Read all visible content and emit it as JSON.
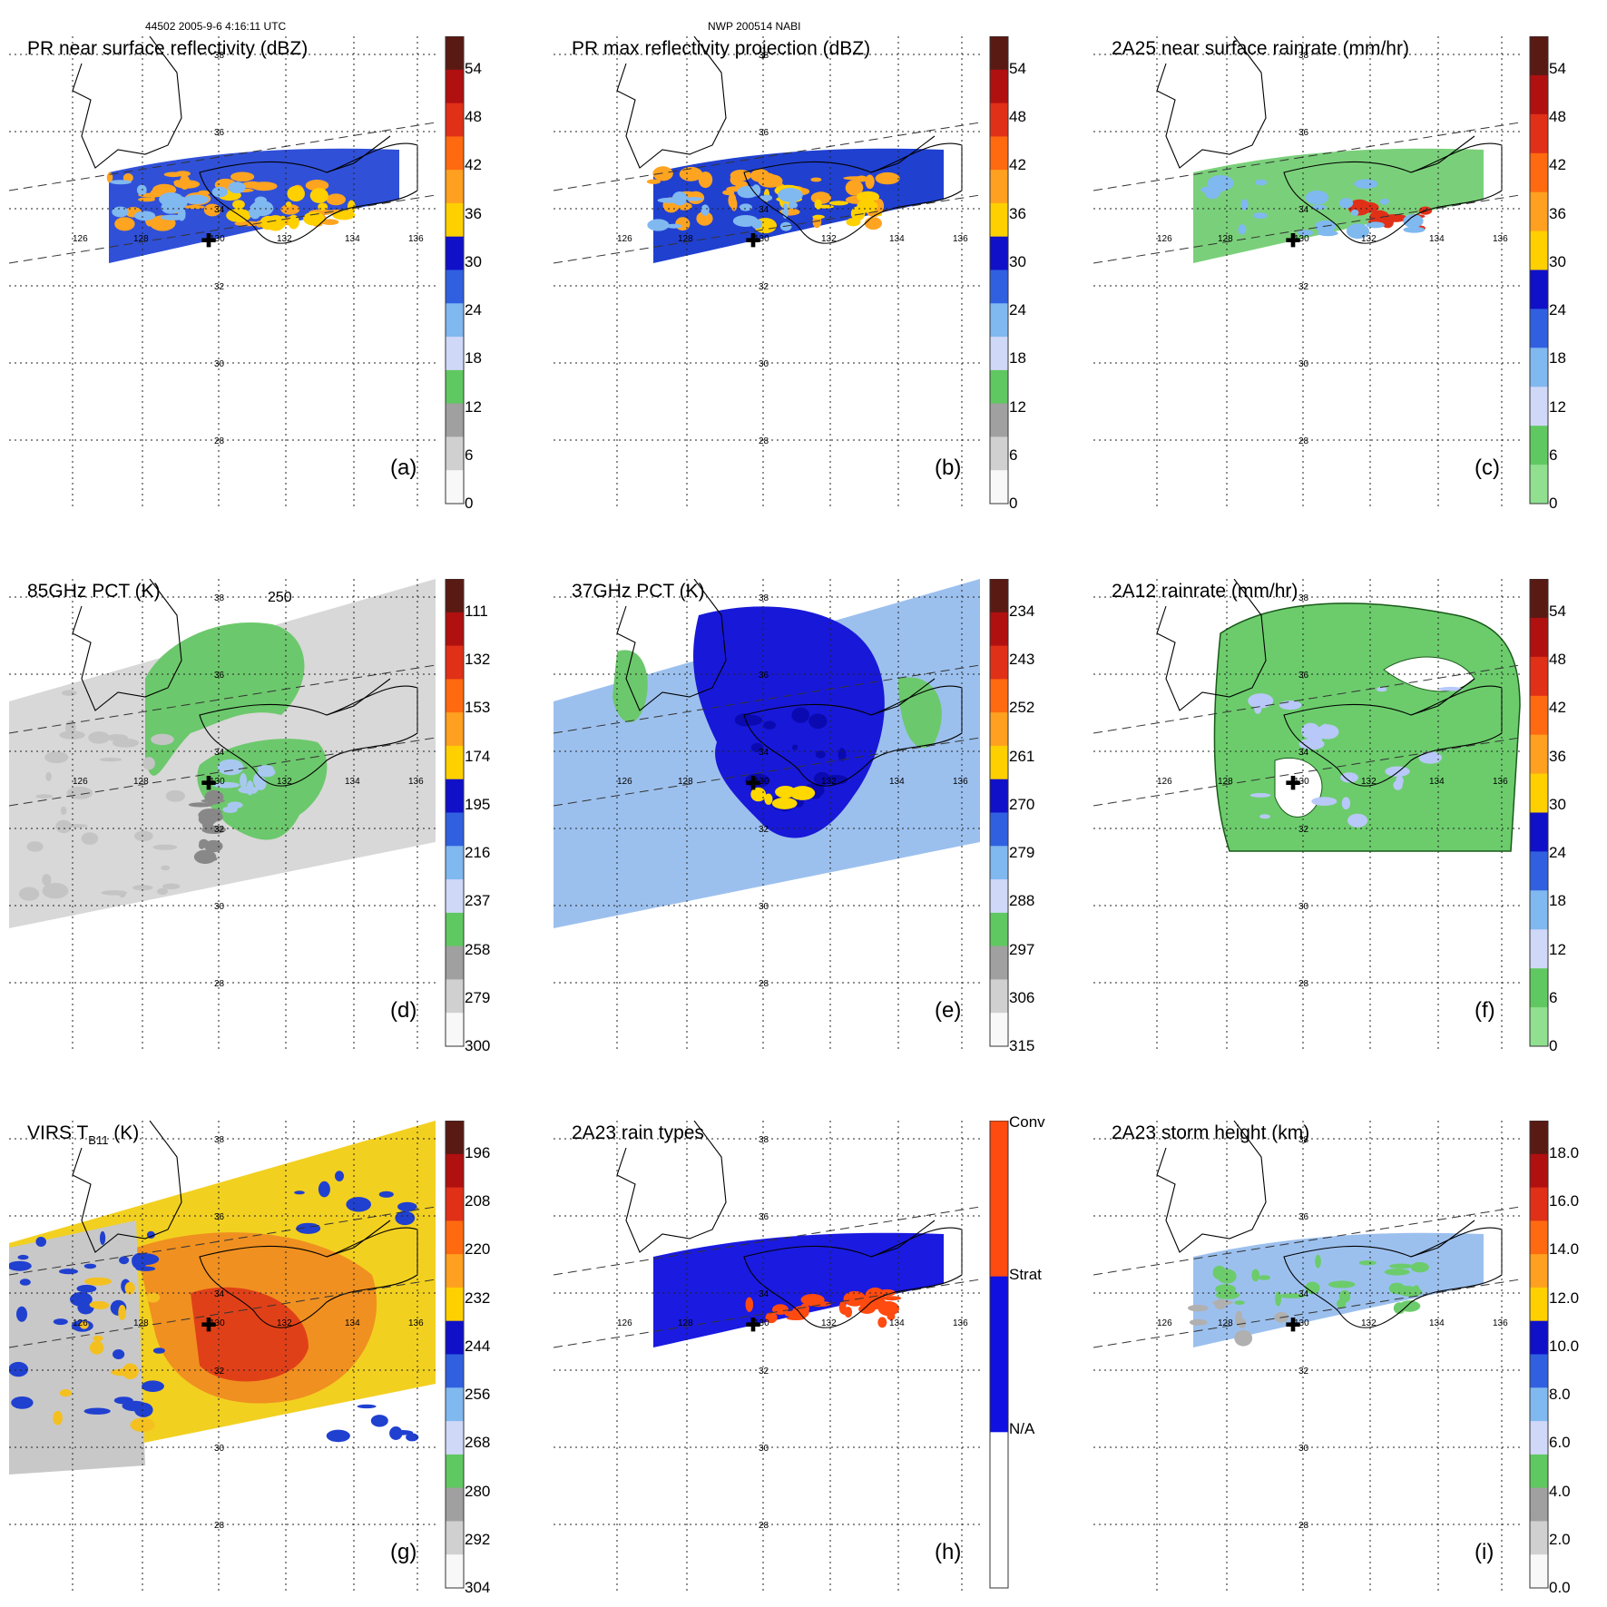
{
  "header": {
    "orbit_time": "44502 2005-9-6 4:16:11 UTC",
    "storm": "NWP 200514 NABI"
  },
  "grid": {
    "lon_labels": [
      "126",
      "128",
      "130",
      "132",
      "134",
      "136"
    ],
    "lat_labels": [
      "38",
      "36",
      "34",
      "32",
      "30",
      "28"
    ]
  },
  "panels": [
    {
      "id": "a",
      "title": "PR near surface reflectivity (dBZ)",
      "letter": "(a)",
      "ticks": [
        "54",
        "48",
        "42",
        "36",
        "30",
        "24",
        "18",
        "12",
        "6",
        "0"
      ],
      "colors": [
        "#5a1a14",
        "#b01010",
        "#e03018",
        "#ff6a10",
        "#ffa020",
        "#ffd000",
        "#1010c8",
        "#3060e0",
        "#80b8f0",
        "#d0d8f8",
        "#60c860",
        "#a0a0a0",
        "#d0d0d0",
        "#f8f8f8"
      ]
    },
    {
      "id": "b",
      "title": "PR max reflectivity projection (dBZ)",
      "letter": "(b)",
      "ticks": [
        "54",
        "48",
        "42",
        "36",
        "30",
        "24",
        "18",
        "12",
        "6",
        "0"
      ],
      "colors": [
        "#5a1a14",
        "#b01010",
        "#e03018",
        "#ff6a10",
        "#ffa020",
        "#ffd000",
        "#1010c8",
        "#3060e0",
        "#80b8f0",
        "#d0d8f8",
        "#60c860",
        "#a0a0a0",
        "#d0d0d0",
        "#f8f8f8"
      ]
    },
    {
      "id": "c",
      "title": "2A25 near surface rainrate (mm/hr)",
      "letter": "(c)",
      "ticks": [
        "54",
        "48",
        "42",
        "36",
        "30",
        "24",
        "18",
        "12",
        "6",
        "0"
      ],
      "colors": [
        "#5a1a14",
        "#b01010",
        "#e03018",
        "#ff6a10",
        "#ffa020",
        "#ffd000",
        "#1010c8",
        "#3060e0",
        "#80b8f0",
        "#d0d8f8",
        "#60c860",
        "#90e090"
      ]
    },
    {
      "id": "d",
      "title": "85GHz PCT (K)",
      "letter": "(d)",
      "contour": "250",
      "ticks": [
        "111",
        "132",
        "153",
        "174",
        "195",
        "216",
        "237",
        "258",
        "279",
        "300"
      ],
      "colors": [
        "#5a1a14",
        "#b01010",
        "#e03018",
        "#ff6a10",
        "#ffa020",
        "#ffd000",
        "#1010c8",
        "#3060e0",
        "#80b8f0",
        "#d0d8f8",
        "#60c860",
        "#a0a0a0",
        "#d0d0d0",
        "#f8f8f8"
      ]
    },
    {
      "id": "e",
      "title": "37GHz PCT (K)",
      "letter": "(e)",
      "ticks": [
        "234",
        "243",
        "252",
        "261",
        "270",
        "279",
        "288",
        "297",
        "306",
        "315"
      ],
      "colors": [
        "#5a1a14",
        "#b01010",
        "#e03018",
        "#ff6a10",
        "#ffa020",
        "#ffd000",
        "#1010c8",
        "#3060e0",
        "#80b8f0",
        "#d0d8f8",
        "#60c860",
        "#a0a0a0",
        "#d0d0d0",
        "#f8f8f8"
      ]
    },
    {
      "id": "f",
      "title": "2A12 rainrate (mm/hr)",
      "letter": "(f)",
      "ticks": [
        "54",
        "48",
        "42",
        "36",
        "30",
        "24",
        "18",
        "12",
        "6",
        "0"
      ],
      "colors": [
        "#5a1a14",
        "#b01010",
        "#e03018",
        "#ff6a10",
        "#ffa020",
        "#ffd000",
        "#1010c8",
        "#3060e0",
        "#80b8f0",
        "#d0d8f8",
        "#60c860",
        "#90e090"
      ]
    },
    {
      "id": "g",
      "title": "VIRS T",
      "title_sub": "B11",
      "title_end": " (K)",
      "letter": "(g)",
      "ticks": [
        "196",
        "208",
        "220",
        "232",
        "244",
        "256",
        "268",
        "280",
        "292",
        "304"
      ],
      "colors": [
        "#5a1a14",
        "#b01010",
        "#e03018",
        "#ff6a10",
        "#ffa020",
        "#ffd000",
        "#1010c8",
        "#3060e0",
        "#80b8f0",
        "#d0d8f8",
        "#60c860",
        "#a0a0a0",
        "#d0d0d0",
        "#f8f8f8"
      ]
    },
    {
      "id": "h",
      "title": "2A23 rain types",
      "letter": "(h)",
      "ticks": [
        "Conv",
        "Strat",
        "N/A"
      ],
      "colors": [
        "#ff4a10",
        "#1010e0",
        "#ffffff"
      ]
    },
    {
      "id": "i",
      "title": "2A23 storm height (km)",
      "letter": "(i)",
      "ticks": [
        "18.0",
        "16.0",
        "14.0",
        "12.0",
        "10.0",
        "8.0",
        "6.0",
        "4.0",
        "2.0",
        "0.0"
      ],
      "colors": [
        "#5a1a14",
        "#b01010",
        "#e03018",
        "#ff6a10",
        "#ffa020",
        "#ffd000",
        "#1010c8",
        "#3060e0",
        "#80b8f0",
        "#d0d8f8",
        "#60c860",
        "#a0a0a0",
        "#d0d0d0",
        "#f8f8f8"
      ]
    }
  ]
}
